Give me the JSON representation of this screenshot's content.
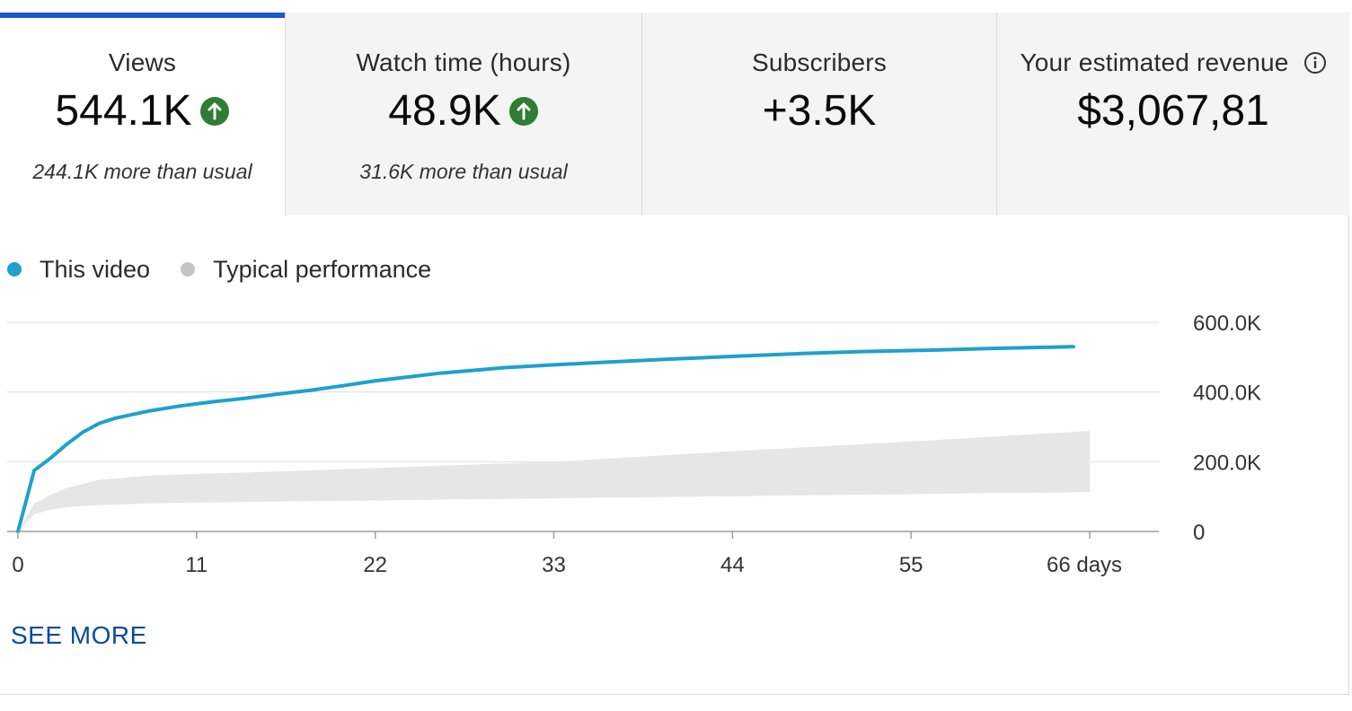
{
  "tabs": [
    {
      "title": "Views",
      "value": "544.1K",
      "trend_icon": "arrow-up-icon",
      "note": "244.1K more than usual",
      "active": true
    },
    {
      "title": "Watch time (hours)",
      "value": "48.9K",
      "trend_icon": "arrow-up-icon",
      "note": "31.6K more than usual",
      "active": false
    },
    {
      "title": "Subscribers",
      "value": "+3.5K",
      "active": false
    },
    {
      "title": "Your estimated revenue",
      "value": "$3,067,81",
      "info_icon": "info-icon",
      "active": false
    }
  ],
  "legend": [
    {
      "label": "This video",
      "color": "#1ea1cc"
    },
    {
      "label": "Typical performance",
      "color": "#c4c4c4"
    }
  ],
  "see_more_label": "SEE MORE",
  "colors": {
    "accent": "#1a57c9",
    "up_badge": "#2e7d32",
    "link": "#0a4a9a"
  },
  "chart_data": {
    "type": "line",
    "x_unit": "days",
    "x_ticks": [
      "0",
      "11",
      "22",
      "33",
      "44",
      "55",
      "66 days"
    ],
    "x_tick_values": [
      0,
      11,
      22,
      33,
      44,
      55,
      66
    ],
    "y_ticks": [
      "0",
      "200.0K",
      "400.0K",
      "600.0K"
    ],
    "y_tick_values": [
      0,
      200000,
      400000,
      600000
    ],
    "xlim": [
      0,
      66
    ],
    "ylim": [
      0,
      600000
    ],
    "grid": true,
    "legend_position": "top-left",
    "series": [
      {
        "name": "This video",
        "color": "#1ea1cc",
        "x": [
          0,
          1,
          2,
          3,
          4,
          5,
          6,
          8,
          10,
          12,
          14,
          16,
          18,
          20,
          22,
          24,
          26,
          28,
          30,
          33,
          36,
          40,
          44,
          48,
          52,
          56,
          60,
          64,
          65
        ],
        "y": [
          0,
          175000,
          210000,
          250000,
          285000,
          310000,
          325000,
          345000,
          360000,
          372000,
          382000,
          394000,
          405000,
          418000,
          432000,
          443000,
          454000,
          462000,
          470000,
          478000,
          485000,
          494000,
          502000,
          510000,
          516000,
          520000,
          525000,
          529000,
          530000
        ]
      },
      {
        "name": "Typical performance",
        "type": "area-band",
        "color": "#e6e6e6",
        "x": [
          0,
          1,
          2,
          3,
          5,
          8,
          11,
          16,
          22,
          33,
          44,
          55,
          60,
          64,
          66
        ],
        "y_low": [
          0,
          50000,
          62000,
          70000,
          76000,
          80000,
          83000,
          86000,
          89000,
          95000,
          101000,
          107000,
          110000,
          112000,
          113000
        ],
        "y_high": [
          0,
          80000,
          105000,
          125000,
          148000,
          160000,
          165000,
          172000,
          182000,
          200000,
          230000,
          258000,
          272000,
          283000,
          288000
        ]
      }
    ]
  }
}
